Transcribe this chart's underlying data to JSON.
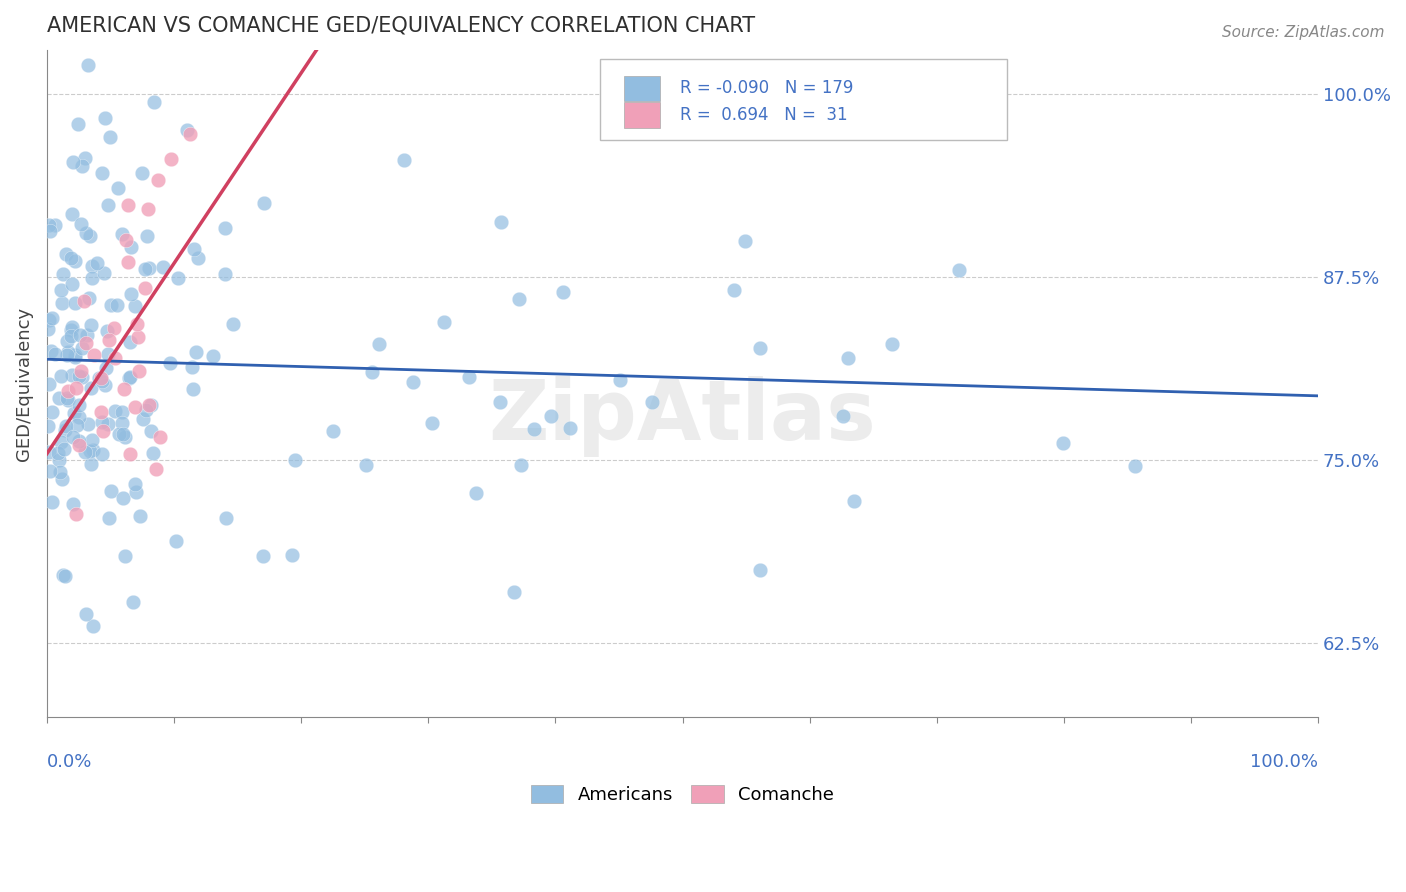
{
  "title": "AMERICAN VS COMANCHE GED/EQUIVALENCY CORRELATION CHART",
  "source": "Source: ZipAtlas.com",
  "ylabel": "GED/Equivalency",
  "legend_labels": [
    "Americans",
    "Comanche"
  ],
  "r_american": -0.09,
  "n_american": 179,
  "r_comanche": 0.694,
  "n_comanche": 31,
  "american_color": "#92bde0",
  "comanche_color": "#f0a0b8",
  "american_line_color": "#3060b0",
  "comanche_line_color": "#d04060",
  "ytick_labels": [
    "62.5%",
    "75.0%",
    "87.5%",
    "100.0%"
  ],
  "ytick_values": [
    0.625,
    0.75,
    0.875,
    1.0
  ],
  "watermark": "ZipAtlas",
  "background_color": "#ffffff",
  "grid_color": "#cccccc",
  "title_color": "#303030",
  "axis_label_color": "#4472c4",
  "legend_r_color": "#4472c4"
}
